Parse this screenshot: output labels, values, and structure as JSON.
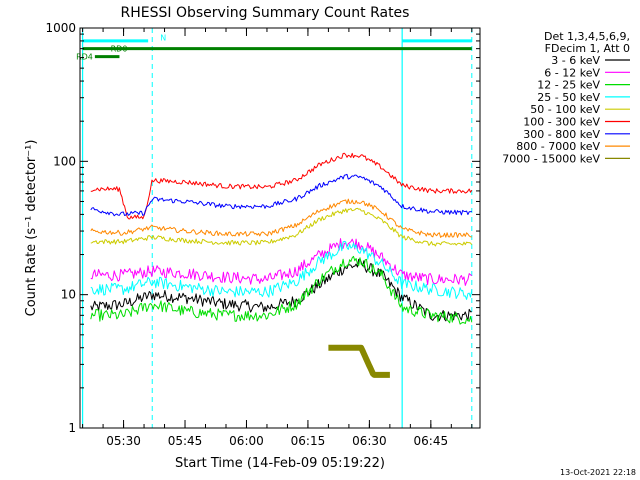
{
  "footer_stamp": "13-Oct-2021 22:18",
  "chart_data": {
    "type": "line",
    "title": "RHESSI Observing Summary Count Rates",
    "xlabel": "Start Time (14-Feb-09 05:19:22)",
    "ylabel": "Count Rate (s⁻¹ detector⁻¹)",
    "y_scale": "log",
    "ylim": [
      1,
      1000
    ],
    "xlim": [
      "05:19:22",
      "06:57:00"
    ],
    "x_ticks": [
      "05:30",
      "05:45",
      "06:00",
      "06:15",
      "06:30",
      "06:45"
    ],
    "y_ticks": [
      "1",
      "10",
      "100",
      "1000"
    ],
    "legend_position": "right",
    "legend_header": [
      "Det 1,3,4,5,6,9,",
      "FDecim 1, Att 0"
    ],
    "series": [
      {
        "name": "3 - 6 keV",
        "color": "#000000",
        "points": [
          [
            "05:22",
            8
          ],
          [
            "05:30",
            8.5
          ],
          [
            "05:37",
            10
          ],
          [
            "05:45",
            9.5
          ],
          [
            "05:55",
            8.5
          ],
          [
            "06:05",
            8
          ],
          [
            "06:12",
            9
          ],
          [
            "06:18",
            12
          ],
          [
            "06:24",
            16
          ],
          [
            "06:28",
            17
          ],
          [
            "06:33",
            14
          ],
          [
            "06:38",
            9.5
          ],
          [
            "06:45",
            7
          ],
          [
            "06:55",
            7
          ]
        ]
      },
      {
        "name": "6 - 12 keV",
        "color": "#ff00ff",
        "points": [
          [
            "05:22",
            14
          ],
          [
            "05:30",
            14
          ],
          [
            "05:37",
            15
          ],
          [
            "05:45",
            14.5
          ],
          [
            "05:55",
            13.5
          ],
          [
            "06:05",
            13
          ],
          [
            "06:12",
            15
          ],
          [
            "06:18",
            20
          ],
          [
            "06:24",
            25
          ],
          [
            "06:28",
            24
          ],
          [
            "06:33",
            19
          ],
          [
            "06:38",
            14
          ],
          [
            "06:45",
            13
          ],
          [
            "06:55",
            13
          ]
        ]
      },
      {
        "name": "12 - 25 keV",
        "color": "#00dd00",
        "points": [
          [
            "05:22",
            7
          ],
          [
            "05:30",
            7
          ],
          [
            "05:37",
            8.5
          ],
          [
            "05:45",
            7.5
          ],
          [
            "05:55",
            7
          ],
          [
            "06:05",
            7
          ],
          [
            "06:12",
            8.5
          ],
          [
            "06:18",
            13
          ],
          [
            "06:24",
            18
          ],
          [
            "06:28",
            18
          ],
          [
            "06:33",
            14
          ],
          [
            "06:38",
            8
          ],
          [
            "06:45",
            7
          ],
          [
            "06:55",
            6.5
          ]
        ]
      },
      {
        "name": "25 - 50 keV",
        "color": "#00ffff",
        "points": [
          [
            "05:22",
            11
          ],
          [
            "05:30",
            11
          ],
          [
            "05:37",
            12.5
          ],
          [
            "05:45",
            11.5
          ],
          [
            "05:55",
            10.5
          ],
          [
            "06:05",
            10.5
          ],
          [
            "06:12",
            12.5
          ],
          [
            "06:18",
            18
          ],
          [
            "06:24",
            23
          ],
          [
            "06:28",
            22
          ],
          [
            "06:33",
            17
          ],
          [
            "06:38",
            12
          ],
          [
            "06:45",
            11
          ],
          [
            "06:55",
            10
          ]
        ]
      },
      {
        "name": "50 - 100 keV",
        "color": "#cccc00",
        "points": [
          [
            "05:22",
            25
          ],
          [
            "05:30",
            25
          ],
          [
            "05:37",
            27
          ],
          [
            "05:45",
            25.5
          ],
          [
            "05:55",
            24.5
          ],
          [
            "06:05",
            24.5
          ],
          [
            "06:12",
            28
          ],
          [
            "06:18",
            37
          ],
          [
            "06:24",
            43
          ],
          [
            "06:28",
            43
          ],
          [
            "06:33",
            36
          ],
          [
            "06:38",
            27
          ],
          [
            "06:45",
            24
          ],
          [
            "06:55",
            24
          ]
        ]
      },
      {
        "name": "100 - 300 keV",
        "color": "#ff0000",
        "points": [
          [
            "05:22",
            62
          ],
          [
            "05:29",
            62
          ],
          [
            "05:31",
            38
          ],
          [
            "05:35",
            38
          ],
          [
            "05:37",
            72
          ],
          [
            "05:45",
            70
          ],
          [
            "05:55",
            65
          ],
          [
            "06:05",
            64
          ],
          [
            "06:12",
            72
          ],
          [
            "06:18",
            95
          ],
          [
            "06:24",
            112
          ],
          [
            "06:28",
            110
          ],
          [
            "06:33",
            90
          ],
          [
            "06:38",
            66
          ],
          [
            "06:45",
            60
          ],
          [
            "06:55",
            60
          ]
        ]
      },
      {
        "name": "300 - 800 keV",
        "color": "#0000ff",
        "points": [
          [
            "05:22",
            44
          ],
          [
            "05:29",
            40
          ],
          [
            "05:35",
            41
          ],
          [
            "05:37",
            52
          ],
          [
            "05:45",
            50
          ],
          [
            "05:55",
            46
          ],
          [
            "06:05",
            46
          ],
          [
            "06:12",
            52
          ],
          [
            "06:18",
            66
          ],
          [
            "06:24",
            77
          ],
          [
            "06:28",
            76
          ],
          [
            "06:33",
            64
          ],
          [
            "06:38",
            46
          ],
          [
            "06:45",
            42
          ],
          [
            "06:55",
            41
          ]
        ]
      },
      {
        "name": "800 - 7000 keV",
        "color": "#ff8800",
        "points": [
          [
            "05:22",
            30
          ],
          [
            "05:30",
            29
          ],
          [
            "05:37",
            32
          ],
          [
            "05:45",
            30
          ],
          [
            "05:55",
            28.5
          ],
          [
            "06:05",
            28.5
          ],
          [
            "06:12",
            33
          ],
          [
            "06:18",
            43
          ],
          [
            "06:24",
            50
          ],
          [
            "06:28",
            50
          ],
          [
            "06:33",
            42
          ],
          [
            "06:38",
            31
          ],
          [
            "06:45",
            28
          ],
          [
            "06:55",
            28
          ]
        ]
      },
      {
        "name": "7000 - 15000 keV",
        "color": "#888800",
        "points": [
          [
            "06:20",
            4
          ],
          [
            "06:24",
            4
          ],
          [
            "06:28",
            4
          ],
          [
            "06:31",
            2.5
          ],
          [
            "06:35",
            2.5
          ]
        ]
      }
    ],
    "flag_bars": [
      {
        "name": "",
        "color": "#00ffff",
        "level": 800,
        "start": "05:20",
        "end": "05:36"
      },
      {
        "name": "",
        "color": "#00ffff",
        "level": 800,
        "start": "06:38",
        "end": "06:55"
      },
      {
        "name": "RD0",
        "color": "#008000",
        "level": 700,
        "start": "05:20",
        "end": "06:55"
      },
      {
        "name": "RD4",
        "color": "#008000",
        "level": 610,
        "start": "05:23",
        "end": "05:29"
      }
    ],
    "flag_labels": [
      {
        "text": "N",
        "color": "#00ffff",
        "time": "05:37",
        "level": 850
      }
    ],
    "dashed_markers": [
      {
        "color": "#00ffff",
        "time": "05:37"
      },
      {
        "color": "#00ffff",
        "time": "06:55"
      }
    ],
    "solid_markers": [
      {
        "color": "#00ffff",
        "time": "05:20"
      },
      {
        "color": "#00ffff",
        "time": "06:38"
      }
    ]
  }
}
